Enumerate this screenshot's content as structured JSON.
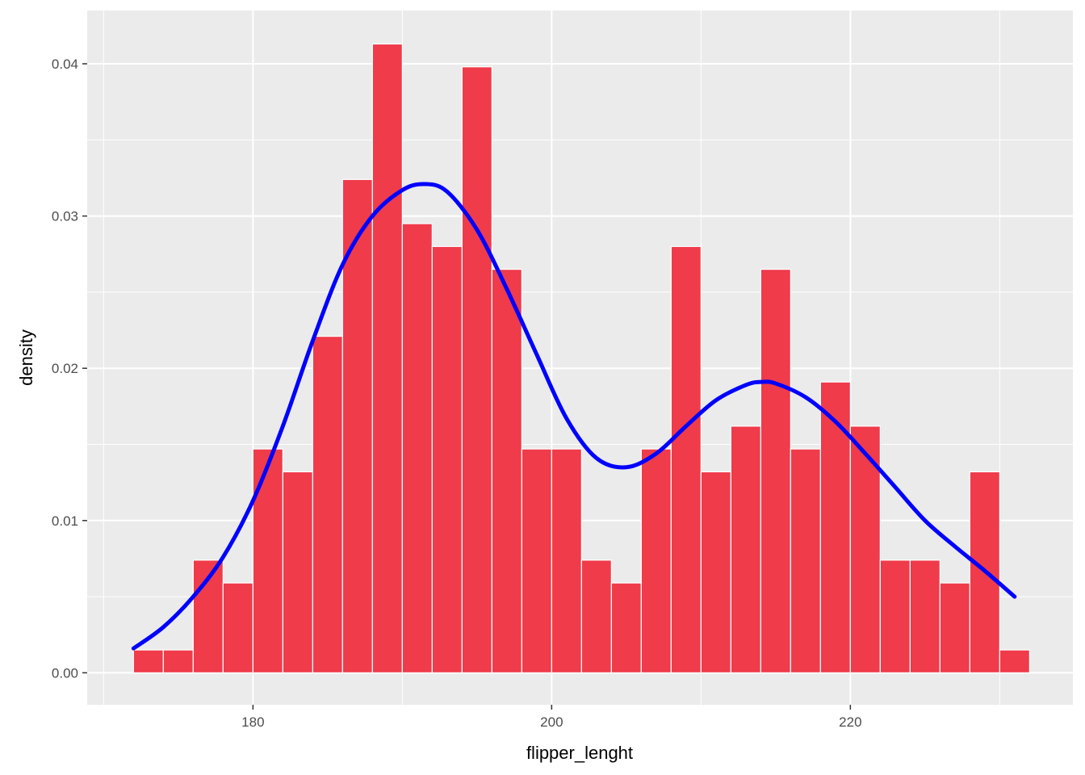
{
  "chart_data": {
    "type": "bar",
    "title": "",
    "xlabel": "flipper_lenght",
    "ylabel": "density",
    "xlim": [
      168.9,
      234.9
    ],
    "ylim": [
      -0.0021,
      0.0435
    ],
    "x_ticks": [
      180,
      200,
      220
    ],
    "x_tick_labels": [
      "180",
      "200",
      "220"
    ],
    "y_ticks": [
      0.0,
      0.01,
      0.02,
      0.03,
      0.04
    ],
    "y_tick_labels": [
      "0.00",
      "0.01",
      "0.02",
      "0.03",
      "0.04"
    ],
    "grid": true,
    "legend": "none",
    "bar_fill": "#ef3b4a",
    "bar_outline": "#ffffff",
    "density_color": "#0000ff",
    "panel_background": "#ebebeb",
    "grid_color": "#ffffff",
    "bins": {
      "start": 172.0,
      "width": 2.0,
      "values": [
        0.0015,
        0.0015,
        0.0074,
        0.0059,
        0.0147,
        0.0132,
        0.0221,
        0.0324,
        0.0413,
        0.0295,
        0.028,
        0.0398,
        0.0265,
        0.0147,
        0.0147,
        0.0074,
        0.0059,
        0.0147,
        0.028,
        0.0132,
        0.0162,
        0.0265,
        0.0147,
        0.0191,
        0.0162,
        0.0074,
        0.0074,
        0.0059,
        0.0132,
        0.0015
      ]
    },
    "density_curve": {
      "x": [
        172,
        174,
        176,
        178,
        180,
        182,
        184,
        186,
        188,
        190,
        191.5,
        193,
        195,
        197,
        199,
        201,
        203,
        205,
        207,
        209,
        211,
        213,
        214,
        215,
        217,
        219,
        221,
        223,
        225,
        227,
        229,
        231
      ],
      "y": [
        0.0016,
        0.003,
        0.005,
        0.0076,
        0.0113,
        0.0162,
        0.0218,
        0.0268,
        0.03,
        0.0317,
        0.0321,
        0.0316,
        0.0291,
        0.0252,
        0.0209,
        0.0167,
        0.0141,
        0.0135,
        0.0144,
        0.0162,
        0.0179,
        0.0189,
        0.0191,
        0.019,
        0.0181,
        0.0165,
        0.0144,
        0.0122,
        0.01,
        0.0083,
        0.0067,
        0.005
      ]
    }
  }
}
